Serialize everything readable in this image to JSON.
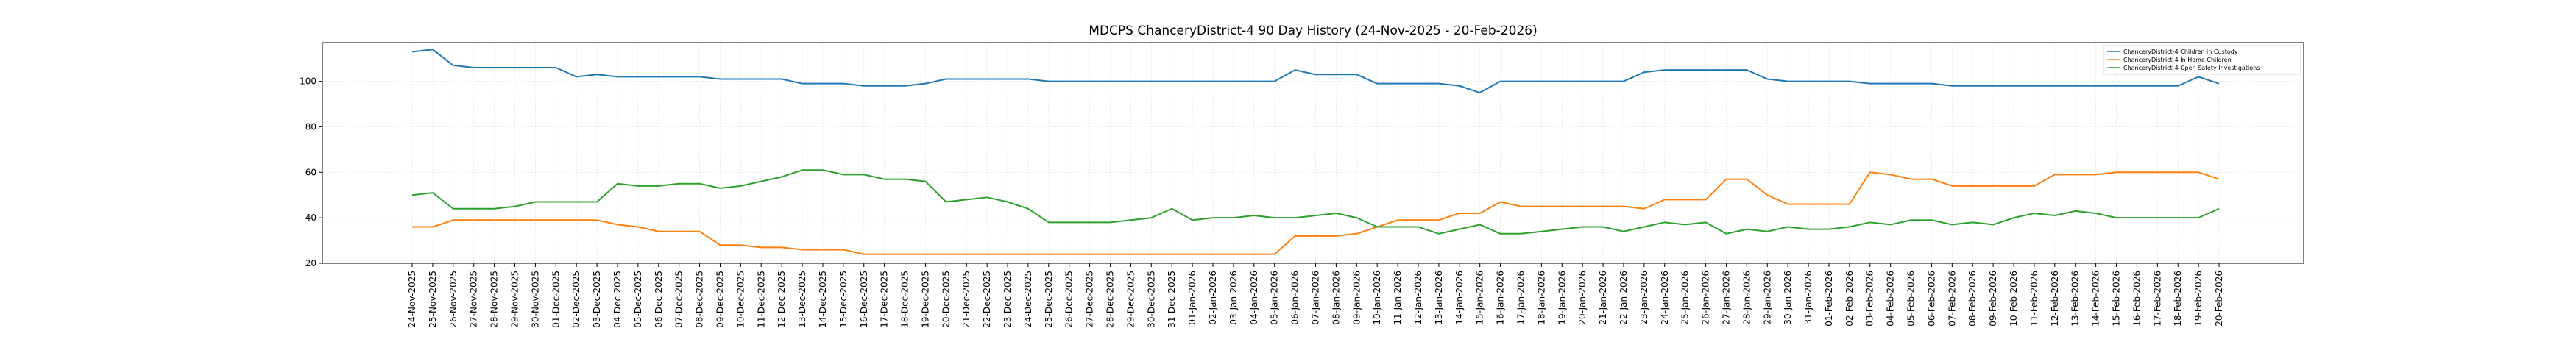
{
  "chart_data": {
    "type": "line",
    "title": "MDCPS ChanceryDistrict-4 90 Day History (24-Nov-2025 - 20-Feb-2026)",
    "xlabel": "",
    "ylabel": "",
    "ylim": [
      20,
      117
    ],
    "yticks": [
      20,
      40,
      60,
      80,
      100
    ],
    "grid": true,
    "legend_position": "top-right",
    "x": [
      "24-Nov-2025",
      "25-Nov-2025",
      "26-Nov-2025",
      "27-Nov-2025",
      "28-Nov-2025",
      "29-Nov-2025",
      "30-Nov-2025",
      "01-Dec-2025",
      "02-Dec-2025",
      "03-Dec-2025",
      "04-Dec-2025",
      "05-Dec-2025",
      "06-Dec-2025",
      "07-Dec-2025",
      "08-Dec-2025",
      "09-Dec-2025",
      "10-Dec-2025",
      "11-Dec-2025",
      "12-Dec-2025",
      "13-Dec-2025",
      "14-Dec-2025",
      "15-Dec-2025",
      "16-Dec-2025",
      "17-Dec-2025",
      "18-Dec-2025",
      "19-Dec-2025",
      "20-Dec-2025",
      "21-Dec-2025",
      "22-Dec-2025",
      "23-Dec-2025",
      "24-Dec-2025",
      "25-Dec-2025",
      "26-Dec-2025",
      "27-Dec-2025",
      "28-Dec-2025",
      "29-Dec-2025",
      "30-Dec-2025",
      "31-Dec-2025",
      "01-Jan-2026",
      "02-Jan-2026",
      "03-Jan-2026",
      "04-Jan-2026",
      "05-Jan-2026",
      "06-Jan-2026",
      "07-Jan-2026",
      "08-Jan-2026",
      "09-Jan-2026",
      "10-Jan-2026",
      "11-Jan-2026",
      "12-Jan-2026",
      "13-Jan-2026",
      "14-Jan-2026",
      "15-Jan-2026",
      "16-Jan-2026",
      "17-Jan-2026",
      "18-Jan-2026",
      "19-Jan-2026",
      "20-Jan-2026",
      "21-Jan-2026",
      "22-Jan-2026",
      "23-Jan-2026",
      "24-Jan-2026",
      "25-Jan-2026",
      "26-Jan-2026",
      "27-Jan-2026",
      "28-Jan-2026",
      "29-Jan-2026",
      "30-Jan-2026",
      "31-Jan-2026",
      "01-Feb-2026",
      "02-Feb-2026",
      "03-Feb-2026",
      "04-Feb-2026",
      "05-Feb-2026",
      "06-Feb-2026",
      "07-Feb-2026",
      "08-Feb-2026",
      "09-Feb-2026",
      "10-Feb-2026",
      "11-Feb-2026",
      "12-Feb-2026",
      "13-Feb-2026",
      "14-Feb-2026",
      "15-Feb-2026",
      "16-Feb-2026",
      "17-Feb-2026",
      "18-Feb-2026",
      "19-Feb-2026",
      "20-Feb-2026"
    ],
    "series": [
      {
        "name": "ChanceryDistrict-4 Children in Custody",
        "color": "#1f77b4",
        "values": [
          113,
          114,
          107,
          106,
          106,
          106,
          106,
          106,
          102,
          103,
          102,
          102,
          102,
          102,
          102,
          101,
          101,
          101,
          101,
          99,
          99,
          99,
          98,
          98,
          98,
          99,
          101,
          101,
          101,
          101,
          101,
          100,
          100,
          100,
          100,
          100,
          100,
          100,
          100,
          100,
          100,
          100,
          100,
          105,
          103,
          103,
          103,
          99,
          99,
          99,
          99,
          98,
          95,
          100,
          100,
          100,
          100,
          100,
          100,
          100,
          104,
          105,
          105,
          105,
          105,
          105,
          101,
          100,
          100,
          100,
          100,
          99,
          99,
          99,
          99,
          98,
          98,
          98,
          98,
          98,
          98,
          98,
          98,
          98,
          98,
          98,
          98,
          102,
          99
        ]
      },
      {
        "name": "ChanceryDistrict-4 In Home Children",
        "color": "#ff7f0e",
        "values": [
          36,
          36,
          39,
          39,
          39,
          39,
          39,
          39,
          39,
          39,
          37,
          36,
          34,
          34,
          34,
          28,
          28,
          27,
          27,
          26,
          26,
          26,
          24,
          24,
          24,
          24,
          24,
          24,
          24,
          24,
          24,
          24,
          24,
          24,
          24,
          24,
          24,
          24,
          24,
          24,
          24,
          24,
          24,
          32,
          32,
          32,
          33,
          36,
          39,
          39,
          39,
          42,
          42,
          47,
          45,
          45,
          45,
          45,
          45,
          45,
          44,
          48,
          48,
          48,
          57,
          57,
          50,
          46,
          46,
          46,
          46,
          60,
          59,
          57,
          57,
          54,
          54,
          54,
          54,
          54,
          59,
          59,
          59,
          60,
          60,
          60,
          60,
          60,
          57
        ]
      },
      {
        "name": "ChanceryDistrict-4 Open Safety Investigations",
        "color": "#2ca02c",
        "values": [
          50,
          51,
          44,
          44,
          44,
          45,
          47,
          47,
          47,
          47,
          55,
          54,
          54,
          55,
          55,
          53,
          54,
          56,
          58,
          61,
          61,
          59,
          59,
          57,
          57,
          56,
          47,
          48,
          49,
          47,
          44,
          38,
          38,
          38,
          38,
          39,
          40,
          44,
          39,
          40,
          40,
          41,
          40,
          40,
          41,
          42,
          40,
          36,
          36,
          36,
          33,
          35,
          37,
          33,
          33,
          34,
          35,
          36,
          36,
          34,
          36,
          38,
          37,
          38,
          33,
          35,
          34,
          36,
          35,
          35,
          36,
          38,
          37,
          39,
          39,
          37,
          38,
          37,
          40,
          42,
          41,
          43,
          42,
          40,
          40,
          40,
          40,
          40,
          44
        ]
      }
    ]
  }
}
